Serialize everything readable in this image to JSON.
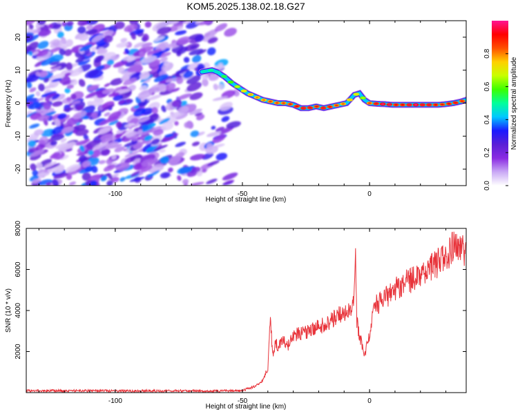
{
  "title": "KOM5.2025.138.02.18.G27",
  "chart_data": [
    {
      "type": "heatmap",
      "xlabel": "Height of straight line (km)",
      "ylabel": "Frequency (Hz)",
      "xlim": [
        -135,
        38
      ],
      "ylim": [
        -25,
        25
      ],
      "xticks": [
        -100,
        -50,
        0
      ],
      "yticks": [
        -20,
        -10,
        0,
        10,
        20
      ],
      "colorbar": {
        "label": "Normalized spectral amplitude",
        "range": [
          0,
          1
        ],
        "ticks": [
          0.0,
          0.2,
          0.4,
          0.6,
          0.8
        ],
        "tick_labels": [
          "0.0",
          "0.2",
          "0.4",
          "0.6",
          "0.8"
        ],
        "colors": [
          "#ffffff",
          "#c9a8f5",
          "#8a2be2",
          "#5a1fd6",
          "#1a1aff",
          "#00c8ff",
          "#00ff9a",
          "#3cff00",
          "#c8ff00",
          "#ffd000",
          "#ff5000",
          "#ff0000",
          "#ff1493"
        ]
      },
      "ridge": {
        "x": [
          -66,
          -62,
          -60,
          -57,
          -54,
          -51,
          -48,
          -45,
          -42,
          -39,
          -36,
          -33,
          -30,
          -27,
          -24,
          -21,
          -18,
          -15,
          -12,
          -9,
          -6,
          -4,
          -2,
          0,
          3,
          6,
          9,
          12,
          15,
          18,
          21,
          24,
          27,
          30,
          33,
          36,
          38
        ],
        "y": [
          9.5,
          10,
          9.5,
          8,
          6,
          4.5,
          3,
          2,
          1,
          0.5,
          0,
          0,
          -0.5,
          -1.5,
          -1.5,
          -1,
          -1.5,
          -1,
          -0.5,
          0,
          2.5,
          3,
          1,
          0,
          -0.2,
          -0.3,
          -0.5,
          -0.5,
          -0.5,
          -0.5,
          -0.5,
          -0.5,
          -0.5,
          -0.3,
          0,
          0.5,
          1
        ],
        "amplitude": [
          0.45,
          0.5,
          0.45,
          0.55,
          0.6,
          0.7,
          0.75,
          0.8,
          0.8,
          0.85,
          0.85,
          0.85,
          0.9,
          0.95,
          0.95,
          0.9,
          0.95,
          0.9,
          0.85,
          0.8,
          0.7,
          0.75,
          0.6,
          0.85,
          0.95,
          1.0,
          0.95,
          0.9,
          0.95,
          1.0,
          0.95,
          0.95,
          0.9,
          0.9,
          0.95,
          0.9,
          0.85
        ]
      },
      "noise_region": {
        "x": [
          -135,
          -50
        ],
        "y": [
          -25,
          25
        ],
        "amplitude_max": 0.35
      }
    },
    {
      "type": "line",
      "xlabel": "Height of straight line (km)",
      "ylabel": "SNR (10 * v/v)",
      "xlim": [
        -135,
        38
      ],
      "ylim": [
        0,
        8000
      ],
      "xticks": [
        -100,
        -50,
        0
      ],
      "yticks": [
        2000,
        4000,
        6000,
        8000
      ],
      "series": [
        {
          "color": "#e8333a",
          "x": [
            -135,
            -120,
            -100,
            -80,
            -60,
            -50,
            -45,
            -42,
            -40,
            -39,
            -38,
            -37,
            -36,
            -34,
            -32,
            -30,
            -27,
            -24,
            -21,
            -18,
            -15,
            -12,
            -9,
            -7,
            -6,
            -5.5,
            -5,
            -4,
            -2,
            0,
            2,
            5,
            10,
            15,
            20,
            25,
            30,
            33,
            35,
            38
          ],
          "y": [
            100,
            90,
            80,
            80,
            80,
            100,
            300,
            600,
            1200,
            3500,
            1800,
            2500,
            2200,
            2600,
            2300,
            2800,
            2900,
            3000,
            3200,
            3300,
            3500,
            3800,
            4000,
            4200,
            5000,
            7200,
            3500,
            2800,
            1800,
            2800,
            4200,
            4500,
            5000,
            5400,
            5800,
            6200,
            6500,
            7200,
            6800,
            7000
          ]
        }
      ]
    }
  ]
}
